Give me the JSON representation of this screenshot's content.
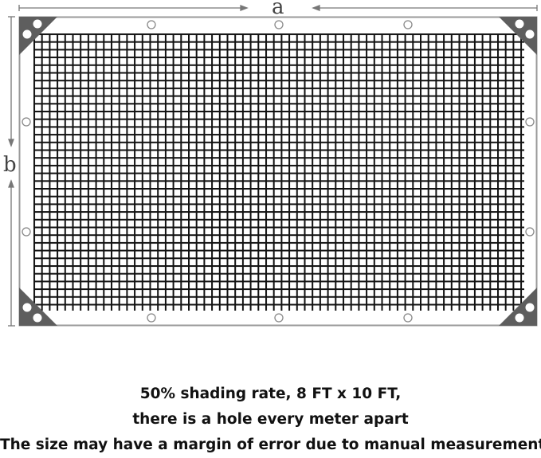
{
  "dimensions": {
    "width_label": "a",
    "height_label": "b"
  },
  "caption": {
    "line1": "50% shading  rate, 8 FT x 10 FT,",
    "line2": "there is a hole every meter apart",
    "line3": "The size  may  have a margin of error due to manual measurement"
  },
  "colors": {
    "frame": "#9a9a9a",
    "corner_plate": "#5e5e5e",
    "mesh": "#111111"
  }
}
